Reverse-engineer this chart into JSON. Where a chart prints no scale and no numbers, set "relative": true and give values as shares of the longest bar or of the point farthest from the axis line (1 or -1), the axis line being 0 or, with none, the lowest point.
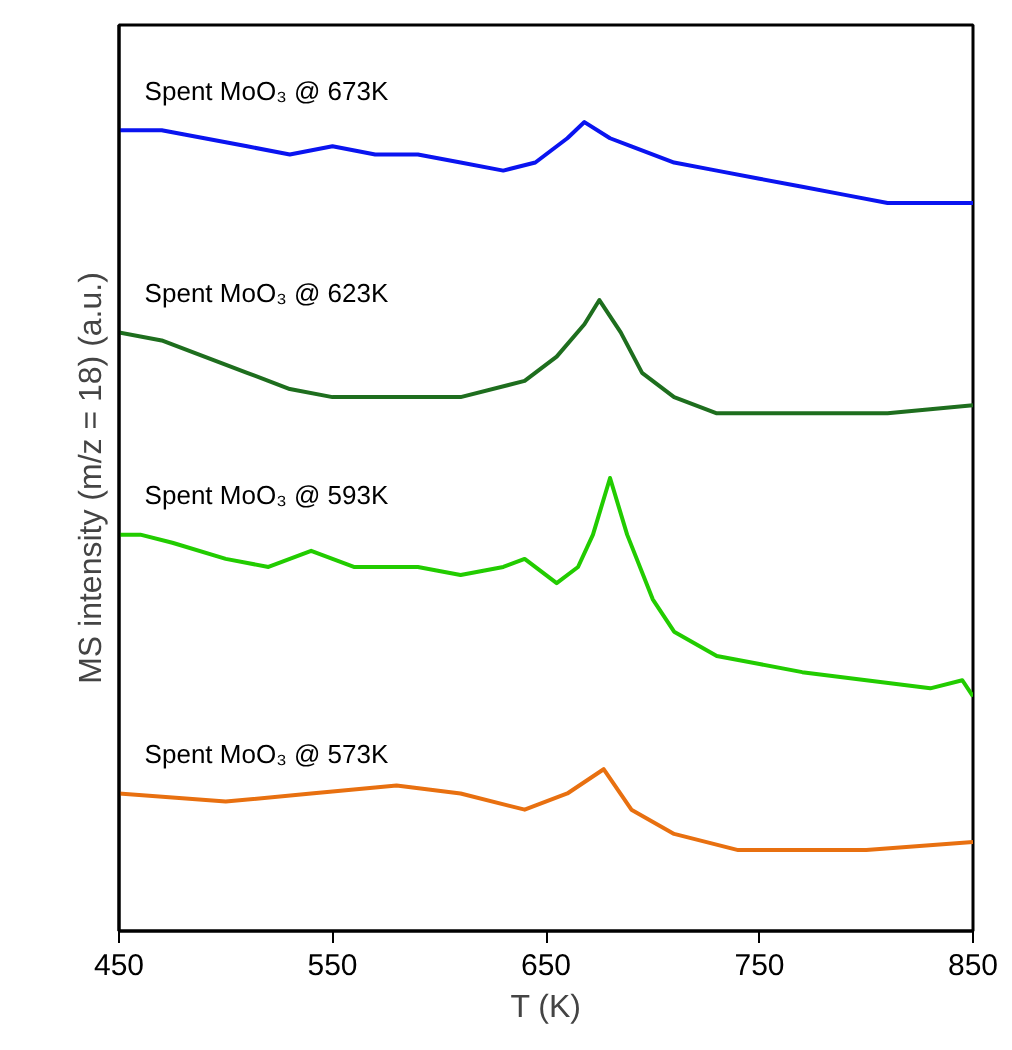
{
  "chart_data": {
    "type": "line",
    "relative": true,
    "xlabel": "T (K)",
    "ylabel": "MS intensity (m/z = 18) (a.u.)",
    "xlim": [
      450,
      850
    ],
    "xticks": [
      450,
      550,
      650,
      750,
      850
    ],
    "grid": false,
    "series": [
      {
        "name": "Spent MoO₃ @ 673K",
        "color": "#0a14f0",
        "x": [
          450,
          470,
          490,
          510,
          530,
          550,
          570,
          590,
          610,
          630,
          645,
          660,
          668,
          680,
          690,
          710,
          730,
          750,
          770,
          790,
          810,
          830,
          850
        ],
        "values": [
          0.99,
          0.99,
          0.98,
          0.97,
          0.96,
          0.97,
          0.96,
          0.96,
          0.95,
          0.94,
          0.95,
          0.98,
          1.0,
          0.98,
          0.97,
          0.95,
          0.94,
          0.93,
          0.92,
          0.91,
          0.9,
          0.9,
          0.9
        ]
      },
      {
        "name": "Spent MoO₃ @ 623K",
        "color": "#1e6e1e",
        "x": [
          450,
          470,
          490,
          510,
          530,
          550,
          580,
          610,
          640,
          655,
          668,
          675,
          685,
          695,
          710,
          730,
          750,
          780,
          810,
          850
        ],
        "values": [
          0.74,
          0.73,
          0.71,
          0.69,
          0.67,
          0.66,
          0.66,
          0.66,
          0.68,
          0.71,
          0.75,
          0.78,
          0.74,
          0.69,
          0.66,
          0.64,
          0.64,
          0.64,
          0.64,
          0.65
        ]
      },
      {
        "name": "Spent MoO₃ @ 593K",
        "color": "#22cc00",
        "x": [
          450,
          460,
          475,
          500,
          520,
          540,
          560,
          590,
          610,
          630,
          640,
          655,
          665,
          672,
          680,
          688,
          700,
          710,
          730,
          750,
          770,
          800,
          830,
          845,
          850
        ],
        "values": [
          0.49,
          0.49,
          0.48,
          0.46,
          0.45,
          0.47,
          0.45,
          0.45,
          0.44,
          0.45,
          0.46,
          0.43,
          0.45,
          0.49,
          0.56,
          0.49,
          0.41,
          0.37,
          0.34,
          0.33,
          0.32,
          0.31,
          0.3,
          0.31,
          0.29
        ]
      },
      {
        "name": "Spent MoO₃ @ 573K",
        "color": "#e87010",
        "x": [
          450,
          500,
          540,
          580,
          610,
          640,
          660,
          677,
          690,
          710,
          740,
          800,
          850
        ],
        "values": [
          0.17,
          0.16,
          0.17,
          0.18,
          0.17,
          0.15,
          0.17,
          0.2,
          0.15,
          0.12,
          0.1,
          0.1,
          0.11
        ]
      }
    ]
  }
}
